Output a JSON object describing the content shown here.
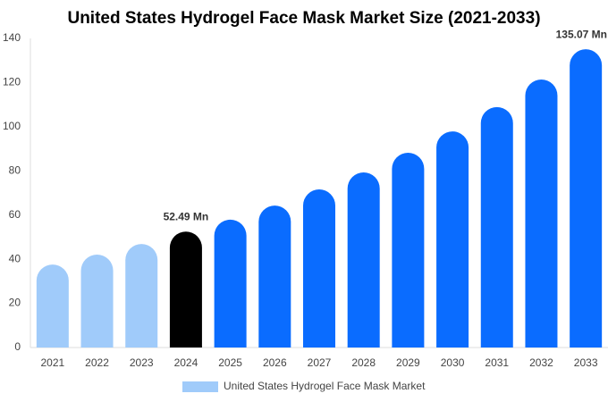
{
  "chart_data": {
    "type": "bar",
    "title": "United States Hydrogel Face Mask Market Size (2021-2033)",
    "categories": [
      "2021",
      "2022",
      "2023",
      "2024",
      "2025",
      "2026",
      "2027",
      "2028",
      "2029",
      "2030",
      "2031",
      "2032",
      "2033"
    ],
    "series": [
      {
        "name": "United States Hydrogel Face Mask Market",
        "color": "#a0cbfa",
        "values": [
          37.6,
          42.1,
          46.9,
          52.49,
          57.9,
          64.3,
          71.6,
          79.3,
          88.2,
          97.9,
          108.9,
          121.4,
          135.07
        ],
        "value_labels": [
          null,
          null,
          null,
          "52.49 Mn",
          null,
          null,
          null,
          null,
          null,
          null,
          null,
          null,
          "135.07 Mn"
        ],
        "colors": [
          "#a0cbfa",
          "#a0cbfa",
          "#a0cbfa",
          "#000000",
          "#0a6cff",
          "#0a6cff",
          "#0a6cff",
          "#0a6cff",
          "#0a6cff",
          "#0a6cff",
          "#0a6cff",
          "#0a6cff",
          "#0a6cff"
        ]
      }
    ],
    "ylim": [
      0,
      140
    ],
    "yticks": [
      0,
      20,
      40,
      60,
      80,
      100,
      120,
      140
    ],
    "grid": false,
    "legend": "bottom"
  }
}
